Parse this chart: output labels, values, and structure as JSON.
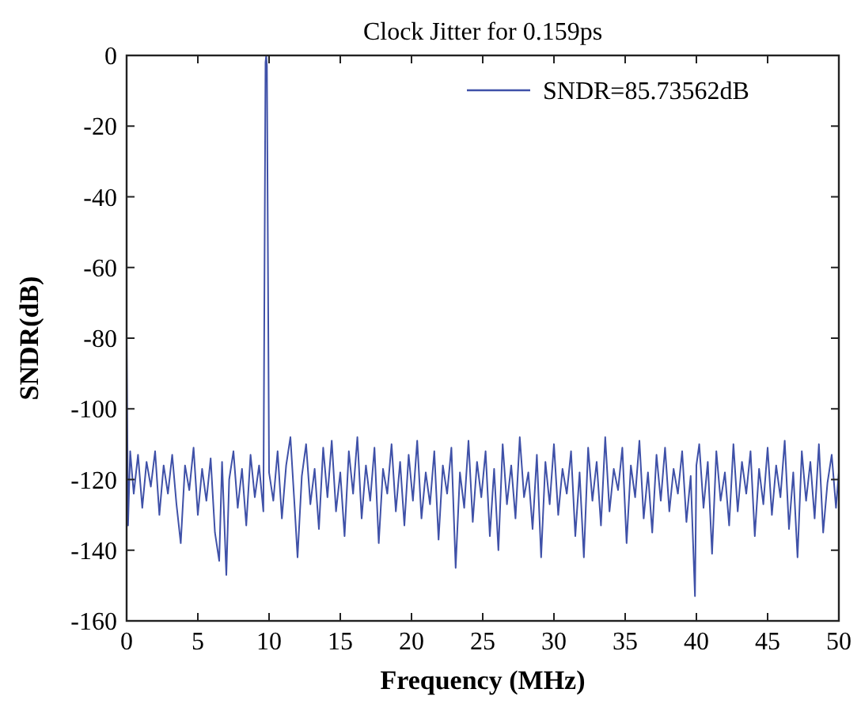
{
  "chart_data": {
    "type": "line",
    "title": "Clock Jitter for 0.159ps",
    "xlabel": "Frequency (MHz)",
    "ylabel": "SNDR(dB)",
    "xlim": [
      0,
      50
    ],
    "ylim": [
      -160,
      0
    ],
    "xticks": [
      0,
      5,
      10,
      15,
      20,
      25,
      30,
      35,
      40,
      45,
      50
    ],
    "yticks": [
      -160,
      -140,
      -120,
      -100,
      -80,
      -60,
      -40,
      -20,
      0
    ],
    "grid": false,
    "legend": "top right",
    "line_style": "solid",
    "series": [
      {
        "name": "SNDR=85.73562dB",
        "color": "#3f51a8",
        "x": [
          0,
          0.1,
          0.25,
          0.5,
          0.8,
          1.1,
          1.4,
          1.7,
          2.0,
          2.3,
          2.6,
          2.9,
          3.2,
          3.5,
          3.8,
          4.1,
          4.4,
          4.7,
          5.0,
          5.3,
          5.6,
          5.9,
          6.2,
          6.5,
          6.7,
          7.0,
          7.2,
          7.5,
          7.8,
          8.1,
          8.4,
          8.7,
          9.0,
          9.3,
          9.6,
          9.75,
          9.8,
          9.85,
          10.0,
          10.3,
          10.6,
          10.9,
          11.2,
          11.5,
          11.8,
          12.0,
          12.3,
          12.6,
          12.9,
          13.2,
          13.5,
          13.8,
          14.1,
          14.4,
          14.7,
          15.0,
          15.3,
          15.6,
          15.9,
          16.2,
          16.5,
          16.8,
          17.1,
          17.4,
          17.7,
          18.0,
          18.3,
          18.6,
          18.9,
          19.2,
          19.5,
          19.8,
          20.1,
          20.4,
          20.7,
          21.0,
          21.3,
          21.6,
          21.9,
          22.2,
          22.5,
          22.8,
          23.1,
          23.4,
          23.7,
          24.0,
          24.3,
          24.6,
          24.9,
          25.2,
          25.5,
          25.8,
          26.1,
          26.4,
          26.7,
          27.0,
          27.3,
          27.6,
          27.9,
          28.2,
          28.5,
          28.8,
          29.1,
          29.4,
          29.7,
          30.0,
          30.3,
          30.6,
          30.9,
          31.2,
          31.5,
          31.8,
          32.1,
          32.4,
          32.7,
          33.0,
          33.3,
          33.6,
          33.9,
          34.2,
          34.5,
          34.8,
          35.1,
          35.4,
          35.7,
          36.0,
          36.3,
          36.6,
          36.9,
          37.2,
          37.5,
          37.8,
          38.1,
          38.4,
          38.7,
          39.0,
          39.3,
          39.6,
          39.9,
          40.0,
          40.2,
          40.5,
          40.8,
          41.1,
          41.4,
          41.7,
          42.0,
          42.3,
          42.6,
          42.9,
          43.2,
          43.5,
          43.8,
          44.1,
          44.4,
          44.7,
          45.0,
          45.3,
          45.6,
          45.9,
          46.2,
          46.5,
          46.8,
          47.1,
          47.4,
          47.7,
          48.0,
          48.3,
          48.6,
          48.9,
          49.2,
          49.5,
          49.8,
          50
        ],
        "values": [
          -80,
          -133,
          -112,
          -124,
          -113,
          -128,
          -115,
          -122,
          -112,
          -130,
          -116,
          -124,
          -113,
          -127,
          -138,
          -116,
          -123,
          -111,
          -130,
          -117,
          -126,
          -114,
          -135,
          -143,
          -115,
          -147,
          -120,
          -112,
          -128,
          -117,
          -133,
          -113,
          -125,
          -116,
          -129,
          -2,
          0,
          -3,
          -118,
          -126,
          -112,
          -131,
          -116,
          -108,
          -128,
          -142,
          -119,
          -110,
          -127,
          -117,
          -134,
          -111,
          -125,
          -109,
          -129,
          -118,
          -136,
          -112,
          -124,
          -108,
          -131,
          -116,
          -126,
          -111,
          -138,
          -117,
          -124,
          -110,
          -129,
          -115,
          -133,
          -113,
          -126,
          -109,
          -131,
          -118,
          -127,
          -112,
          -137,
          -116,
          -124,
          -111,
          -145,
          -118,
          -128,
          -109,
          -132,
          -115,
          -125,
          -112,
          -136,
          -117,
          -140,
          -110,
          -127,
          -116,
          -131,
          -108,
          -125,
          -118,
          -134,
          -113,
          -142,
          -115,
          -127,
          -110,
          -130,
          -117,
          -124,
          -112,
          -136,
          -118,
          -142,
          -111,
          -126,
          -115,
          -133,
          -108,
          -129,
          -117,
          -123,
          -111,
          -138,
          -116,
          -125,
          -109,
          -131,
          -118,
          -135,
          -113,
          -126,
          -111,
          -129,
          -117,
          -124,
          -112,
          -132,
          -119,
          -153,
          -116,
          -110,
          -128,
          -115,
          -141,
          -112,
          -126,
          -118,
          -133,
          -110,
          -129,
          -115,
          -124,
          -112,
          -136,
          -117,
          -127,
          -111,
          -130,
          -116,
          -125,
          -109,
          -134,
          -118,
          -142,
          -112,
          -126,
          -115,
          -131,
          -110,
          -135,
          -121,
          -113,
          -128,
          -118
        ]
      }
    ]
  }
}
